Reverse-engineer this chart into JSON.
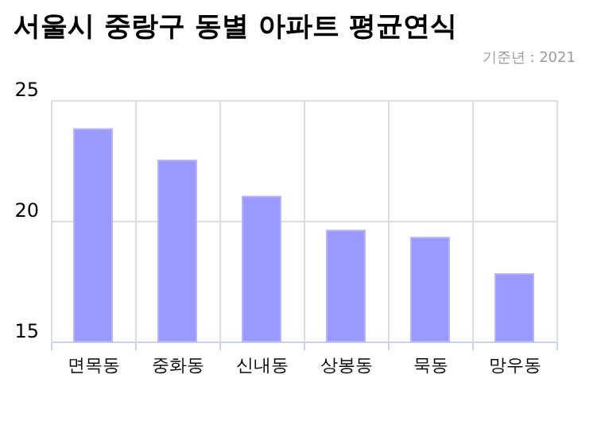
{
  "chart_data": {
    "type": "bar",
    "title": "서울시 중랑구 동별 아파트 평균연식",
    "annotations": [
      "기준년 : 2021"
    ],
    "categories": [
      "면목동",
      "중화동",
      "신내동",
      "상봉동",
      "묵동",
      "망우동"
    ],
    "values": [
      23.8,
      22.5,
      21.0,
      19.6,
      19.3,
      17.8
    ],
    "color": "#9999ff",
    "ylim": [
      15,
      25
    ],
    "yticks": [
      15,
      20,
      25
    ],
    "grid": true
  }
}
